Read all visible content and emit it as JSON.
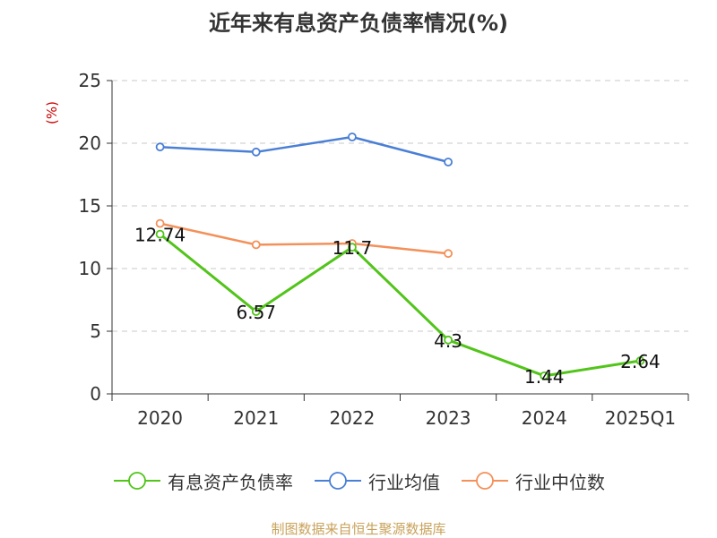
{
  "chart_data": {
    "type": "line",
    "title": "近年来有息资产负债率情况(%)",
    "ylabel": "(%)",
    "xlabel": "",
    "categories": [
      "2020",
      "2021",
      "2022",
      "2023",
      "2024",
      "2025Q1"
    ],
    "ylim": [
      0,
      25
    ],
    "yticks": [
      0,
      5,
      10,
      15,
      20,
      25
    ],
    "grid": "horizontal dashed",
    "legend_position": "bottom",
    "series": [
      {
        "name": "有息资产负债率",
        "color": "#52c41a",
        "values": [
          12.74,
          6.57,
          11.7,
          4.3,
          1.44,
          2.64
        ],
        "labels": [
          "12.74",
          "6.57",
          "11.7",
          "4.3",
          "1.44",
          "2.64"
        ]
      },
      {
        "name": "行业均值",
        "color": "#4a7fd6",
        "values": [
          19.7,
          19.3,
          20.5,
          18.5,
          null,
          null
        ]
      },
      {
        "name": "行业中位数",
        "color": "#f4905a",
        "values": [
          13.6,
          11.9,
          12.0,
          11.2,
          null,
          null
        ]
      }
    ]
  },
  "footer": {
    "source": "制图数据来自恒生聚源数据库"
  }
}
